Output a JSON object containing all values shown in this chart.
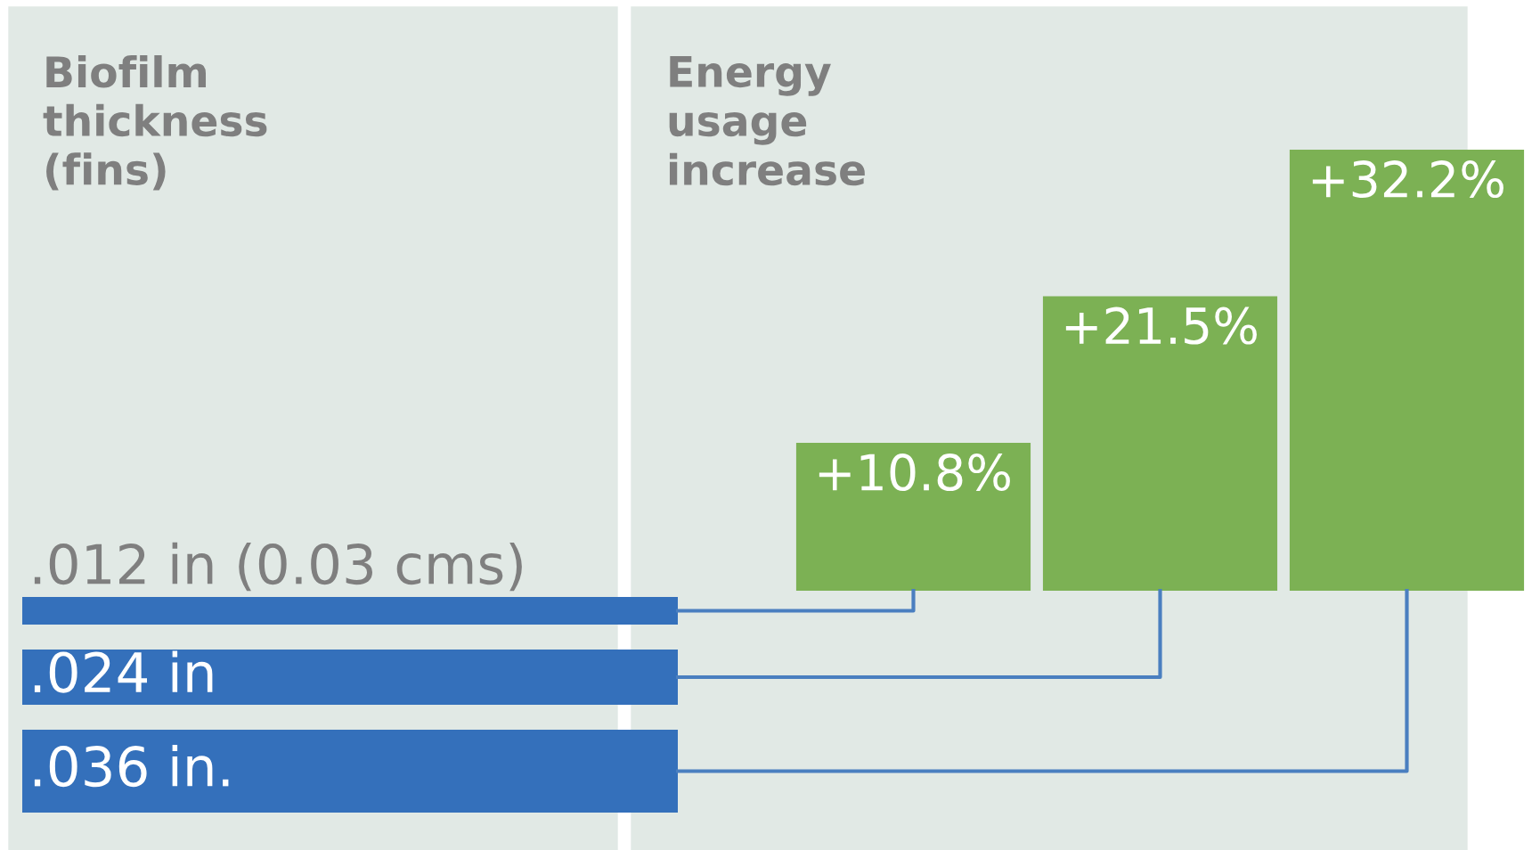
{
  "chart_data": [
    {
      "type": "other",
      "title": "Biofilm\nthickness\n(fins)",
      "categories": [
        ".012 in (0.03 cms)",
        ".024 in",
        ".036 in."
      ],
      "color": "#3470bb"
    },
    {
      "type": "bar",
      "title": "Energy\nusage\nincrease",
      "categories": [
        null,
        null,
        null
      ],
      "values": [
        10.8,
        21.5,
        32.2
      ],
      "value_labels": [
        "+10.8%",
        "+21.5%",
        "+32.2%"
      ],
      "color": "#7cb154"
    }
  ]
}
